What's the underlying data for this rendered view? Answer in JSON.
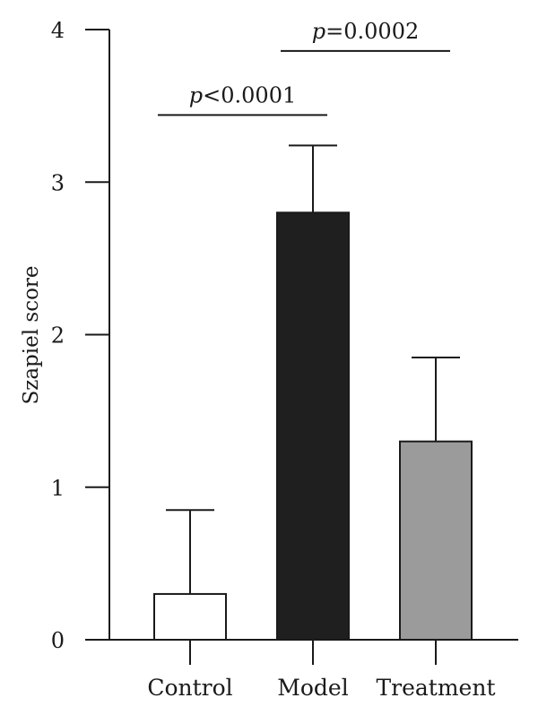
{
  "chart_data": {
    "type": "bar",
    "title": "",
    "xlabel": "",
    "ylabel": "Szapiel score",
    "ylim": [
      0,
      4
    ],
    "yticks": [
      0,
      1,
      2,
      3,
      4
    ],
    "grid": false,
    "categories": [
      "Control",
      "Model",
      "Treatment"
    ],
    "values": [
      0.3,
      2.8,
      1.3
    ],
    "error_upper": [
      0.85,
      3.24,
      1.85
    ],
    "colors": [
      "#ffffff",
      "#1f1f1f",
      "#9b9b9b"
    ],
    "annotations": [
      {
        "from": "Control",
        "to": "Model",
        "y": 3.44,
        "prefix": "p",
        "text": "<0.0001"
      },
      {
        "from": "Model",
        "to": "Treatment",
        "y": 3.86,
        "prefix": "p",
        "text": "=0.0002"
      }
    ]
  }
}
